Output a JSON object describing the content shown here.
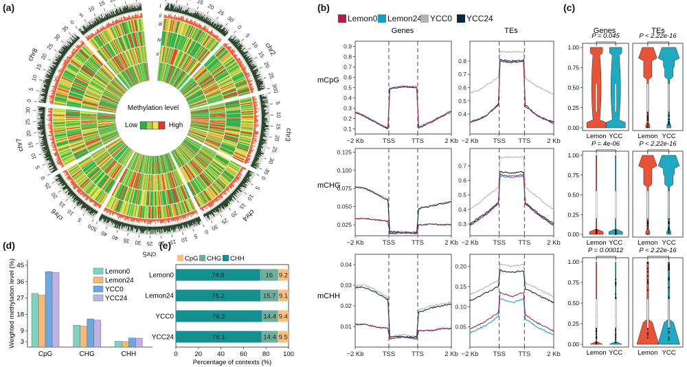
{
  "panel_labels": {
    "a": "(a)",
    "b": "(b)",
    "c": "(c)",
    "d": "(d)",
    "e": "(e)"
  },
  "colors": {
    "lemon0": "#a8224a",
    "lemon24": "#1a9bc3",
    "ycc0": "#b3b3b3",
    "ycc24": "#10263f",
    "violin_lemon": "#e8543a",
    "violin_ycc": "#22a9c2",
    "bar_lemon0": "#7fd3c0",
    "bar_lemon24": "#f7b97a",
    "bar_ycc0": "#6fa7dd",
    "bar_ycc24": "#c0b2e6",
    "ctx_cpg": "#f6c07e",
    "ctx_chg": "#6fad9f",
    "ctx_chh": "#13908f"
  },
  "circos": {
    "chromosomes": [
      {
        "name": "chr1",
        "length": 33
      },
      {
        "name": "chr2",
        "length": 30
      },
      {
        "name": "chr3",
        "length": 36
      },
      {
        "name": "chr4",
        "length": 32
      },
      {
        "name": "chr5",
        "length": 50
      },
      {
        "name": "chr6",
        "length": 27
      },
      {
        "name": "chr7",
        "length": 32
      },
      {
        "name": "chr8",
        "length": 37
      },
      {
        "name": "chr9",
        "length": 32
      }
    ],
    "track_labels": [
      "i",
      "ii",
      "iii",
      "iv",
      "v"
    ],
    "legend_title": "Methylation level",
    "legend_low": "Low",
    "legend_high": "High"
  },
  "chart_data": [
    {
      "id": "b-profiles",
      "type": "line",
      "legend": [
        "Lemon0",
        "Lemon24",
        "YCC0",
        "YCC24"
      ],
      "column_titles": [
        "Genes",
        "TEs"
      ],
      "row_labels": [
        "mCpG",
        "mCHG",
        "mCHH"
      ],
      "x_ticks": [
        "−2 Kb",
        "TSS",
        "TTS",
        "2 Kb"
      ],
      "plots": [
        {
          "row": "mCpG",
          "col": "Genes",
          "yticks": [
            "0.1",
            "0.2",
            "0.3",
            "0.4",
            "0.5",
            "0.6",
            "0.7",
            "0.8",
            "0.9"
          ],
          "ylim": [
            0.05,
            0.95
          ],
          "series": {
            "Lemon0": [
              0.26,
              0.22,
              0.17,
              0.1,
              0.49,
              0.51,
              0.5,
              0.11,
              0.17,
              0.22,
              0.27
            ],
            "Lemon24": [
              0.26,
              0.22,
              0.17,
              0.1,
              0.49,
              0.51,
              0.5,
              0.11,
              0.17,
              0.22,
              0.27
            ],
            "YCC0": [
              0.27,
              0.23,
              0.18,
              0.11,
              0.5,
              0.52,
              0.51,
              0.12,
              0.18,
              0.23,
              0.28
            ],
            "YCC24": [
              0.26,
              0.22,
              0.17,
              0.1,
              0.49,
              0.51,
              0.5,
              0.11,
              0.17,
              0.22,
              0.27
            ]
          }
        },
        {
          "row": "mCpG",
          "col": "TEs",
          "yticks": [
            "0.4",
            "0.5",
            "0.6",
            "0.7",
            "0.8"
          ],
          "ylim": [
            0.25,
            0.95
          ],
          "series": {
            "Lemon0": [
              0.34,
              0.36,
              0.39,
              0.47,
              0.8,
              0.79,
              0.8,
              0.46,
              0.39,
              0.36,
              0.33
            ],
            "Lemon24": [
              0.34,
              0.36,
              0.39,
              0.47,
              0.8,
              0.79,
              0.8,
              0.46,
              0.39,
              0.36,
              0.33
            ],
            "YCC0": [
              0.56,
              0.58,
              0.62,
              0.68,
              0.87,
              0.87,
              0.87,
              0.67,
              0.61,
              0.58,
              0.55
            ],
            "YCC24": [
              0.34,
              0.36,
              0.39,
              0.48,
              0.81,
              0.8,
              0.81,
              0.47,
              0.39,
              0.36,
              0.34
            ]
          }
        },
        {
          "row": "mCHG",
          "col": "Genes",
          "yticks": [
            "0.025",
            "0.050",
            "0.075",
            "0.100",
            "0.125"
          ],
          "ylim": [
            0.01,
            0.13
          ],
          "series": {
            "Lemon0": [
              0.033,
              0.034,
              0.032,
              0.03,
              0.013,
              0.014,
              0.013,
              0.025,
              0.026,
              0.025,
              0.025
            ],
            "Lemon24": [
              0.033,
              0.034,
              0.032,
              0.03,
              0.013,
              0.014,
              0.013,
              0.025,
              0.026,
              0.025,
              0.025
            ],
            "YCC0": [
              0.078,
              0.076,
              0.07,
              0.06,
              0.016,
              0.016,
              0.015,
              0.048,
              0.052,
              0.055,
              0.058
            ],
            "YCC24": [
              0.077,
              0.075,
              0.069,
              0.059,
              0.015,
              0.015,
              0.014,
              0.047,
              0.051,
              0.054,
              0.057
            ]
          }
        },
        {
          "row": "mCHG",
          "col": "TEs",
          "yticks": [
            "0.3",
            "0.4",
            "0.5",
            "0.6",
            "0.7"
          ],
          "ylim": [
            0.22,
            0.82
          ],
          "series": {
            "Lemon0": [
              0.29,
              0.33,
              0.37,
              0.44,
              0.64,
              0.63,
              0.64,
              0.44,
              0.37,
              0.33,
              0.29
            ],
            "Lemon24": [
              0.29,
              0.33,
              0.37,
              0.44,
              0.63,
              0.62,
              0.63,
              0.44,
              0.37,
              0.33,
              0.29
            ],
            "YCC0": [
              0.4,
              0.44,
              0.49,
              0.55,
              0.76,
              0.76,
              0.76,
              0.55,
              0.49,
              0.44,
              0.4
            ],
            "YCC24": [
              0.3,
              0.34,
              0.38,
              0.45,
              0.66,
              0.65,
              0.66,
              0.45,
              0.38,
              0.34,
              0.3
            ]
          }
        },
        {
          "row": "mCHH",
          "col": "Genes",
          "yticks": [
            "0.01",
            "0.02",
            "0.03",
            "0.04"
          ],
          "ylim": [
            0.0,
            0.045
          ],
          "series": {
            "Lemon0": [
              0.011,
              0.011,
              0.01,
              0.009,
              0.004,
              0.005,
              0.004,
              0.008,
              0.008,
              0.009,
              0.009
            ],
            "Lemon24": [
              0.011,
              0.011,
              0.01,
              0.009,
              0.004,
              0.005,
              0.004,
              0.008,
              0.008,
              0.009,
              0.009
            ],
            "YCC0": [
              0.03,
              0.03,
              0.028,
              0.024,
              0.005,
              0.006,
              0.005,
              0.018,
              0.02,
              0.021,
              0.022
            ],
            "YCC24": [
              0.029,
              0.029,
              0.027,
              0.023,
              0.005,
              0.005,
              0.005,
              0.017,
              0.019,
              0.02,
              0.021
            ]
          }
        },
        {
          "row": "mCHH",
          "col": "TEs",
          "yticks": [
            "0.05",
            "0.10",
            "0.15",
            "0.20"
          ],
          "ylim": [
            0.0,
            0.23
          ],
          "series": {
            "Lemon0": [
              0.045,
              0.055,
              0.065,
              0.085,
              0.135,
              0.125,
              0.135,
              0.08,
              0.06,
              0.05,
              0.04
            ],
            "Lemon24": [
              0.035,
              0.045,
              0.055,
              0.075,
              0.12,
              0.11,
              0.12,
              0.07,
              0.05,
              0.04,
              0.03
            ],
            "YCC0": [
              0.13,
              0.14,
              0.15,
              0.165,
              0.205,
              0.2,
              0.205,
              0.16,
              0.145,
              0.135,
              0.125
            ],
            "YCC24": [
              0.115,
              0.125,
              0.135,
              0.15,
              0.19,
              0.185,
              0.19,
              0.145,
              0.13,
              0.12,
              0.11
            ]
          }
        }
      ]
    },
    {
      "id": "c-violins",
      "type": "violin",
      "column_titles": [
        "Genes",
        "TEs"
      ],
      "yticks": [
        "0.00",
        "0.25",
        "0.50",
        "0.75",
        "1.00"
      ],
      "x_groups": [
        "Lemon",
        "YCC"
      ],
      "plots": [
        {
          "row": 1,
          "col": "Genes",
          "pvalue": "P = 0.045",
          "kind": "wide"
        },
        {
          "row": 1,
          "col": "TEs",
          "pvalue": "P < 2.22e-16",
          "kind": "top"
        },
        {
          "row": 2,
          "col": "Genes",
          "pvalue": "P = 4e-06",
          "kind": "spike"
        },
        {
          "row": 2,
          "col": "TEs",
          "pvalue": "P < 2.22e-16",
          "kind": "top"
        },
        {
          "row": 3,
          "col": "Genes",
          "pvalue": "P = 0.00012",
          "kind": "dots"
        },
        {
          "row": 3,
          "col": "TEs",
          "pvalue": "P < 2.22e-16",
          "kind": "bottom"
        }
      ]
    },
    {
      "id": "d-weighted",
      "type": "bar",
      "title": "",
      "ylabel": "Weighted methylation level (%)",
      "categories": [
        "CpG",
        "CHG",
        "CHH"
      ],
      "yticks": [
        "3",
        "9",
        "18",
        "27",
        "36",
        "45"
      ],
      "ylim": [
        0,
        48
      ],
      "series": [
        {
          "name": "Lemon0",
          "values": [
            29.5,
            12.0,
            3.2
          ]
        },
        {
          "name": "Lemon24",
          "values": [
            28.5,
            11.5,
            3.0
          ]
        },
        {
          "name": "YCC0",
          "values": [
            41.5,
            15.5,
            5.0
          ]
        },
        {
          "name": "YCC24",
          "values": [
            41.0,
            14.8,
            4.9
          ]
        }
      ]
    },
    {
      "id": "e-contexts",
      "type": "bar",
      "orientation": "horizontal-stacked",
      "xlabel": "Percentage of contexts (%)",
      "xticks": [
        "0",
        "20",
        "40",
        "60",
        "80",
        "100"
      ],
      "legend": [
        "CpG",
        "CHG",
        "CHH"
      ],
      "rows": [
        {
          "name": "Lemon0",
          "CHH": 74.8,
          "CHG": 16,
          "CpG": 9.2,
          "labels": [
            "74.8",
            "16",
            "9.2"
          ]
        },
        {
          "name": "Lemon24",
          "CHH": 75.2,
          "CHG": 15.7,
          "CpG": 9.1,
          "labels": [
            "75.2",
            "15.7",
            "9.1"
          ]
        },
        {
          "name": "YCC0",
          "CHH": 76.2,
          "CHG": 14.4,
          "CpG": 9.4,
          "labels": [
            "76.2",
            "14.4",
            "9.4"
          ]
        },
        {
          "name": "YCC24",
          "CHH": 76.1,
          "CHG": 14.4,
          "CpG": 9.5,
          "labels": [
            "76.1",
            "14.4",
            "9.5"
          ]
        }
      ]
    }
  ]
}
